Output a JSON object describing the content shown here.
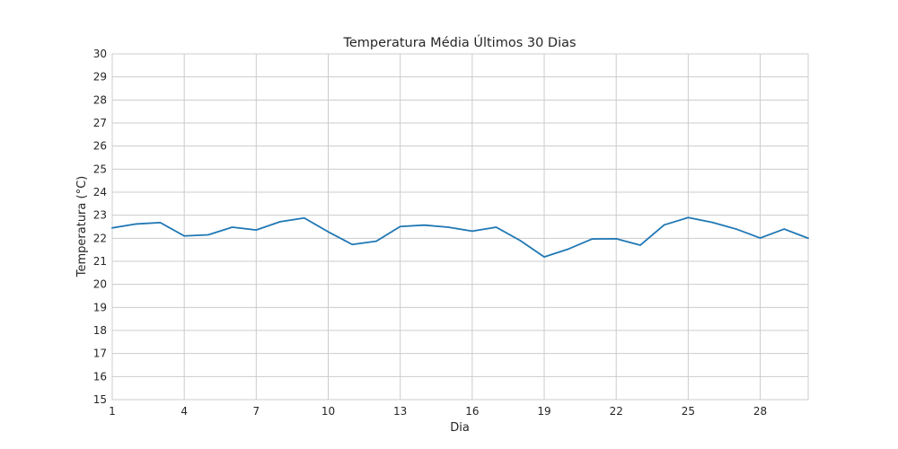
{
  "chart_data": {
    "type": "line",
    "title": "Temperatura Média Últimos 30 Dias",
    "xlabel": "Dia",
    "ylabel": "Temperatura (°C)",
    "xlim": [
      1,
      30
    ],
    "ylim": [
      15,
      30
    ],
    "x_ticks": [
      1,
      4,
      7,
      10,
      13,
      16,
      19,
      22,
      25,
      28
    ],
    "y_ticks": [
      15,
      16,
      17,
      18,
      19,
      20,
      21,
      22,
      23,
      24,
      25,
      26,
      27,
      28,
      29,
      30
    ],
    "grid": true,
    "legend": false,
    "series": [
      {
        "color": "#1f77b4",
        "x": [
          1,
          2,
          3,
          4,
          5,
          6,
          7,
          8,
          9,
          10,
          11,
          12,
          13,
          14,
          15,
          16,
          17,
          18,
          19,
          20,
          21,
          22,
          23,
          24,
          25,
          26,
          27,
          28,
          29,
          30
        ],
        "y": [
          22.45,
          22.62,
          22.68,
          22.1,
          22.15,
          22.48,
          22.36,
          22.72,
          22.88,
          22.28,
          21.73,
          21.87,
          22.51,
          22.57,
          22.48,
          22.31,
          22.48,
          21.9,
          21.19,
          21.53,
          21.97,
          21.98,
          21.7,
          22.58,
          22.9,
          22.69,
          22.4,
          22.01,
          22.4,
          22.0
        ]
      }
    ]
  }
}
